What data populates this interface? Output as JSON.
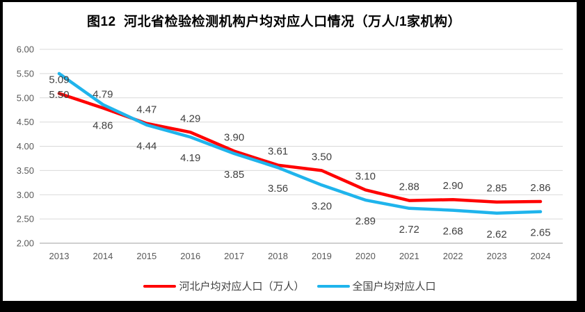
{
  "window": {
    "frame_color": "#000000",
    "background_color": "#ffffff"
  },
  "title": "图12  河北省检验检测机构户均对应人口情况（万人/1家机构）",
  "chart_data": {
    "type": "line",
    "title": "图12  河北省检验检测机构户均对应人口情况（万人/1家机构）",
    "categories": [
      "2013",
      "2014",
      "2015",
      "2016",
      "2017",
      "2018",
      "2019",
      "2020",
      "2021",
      "2022",
      "2023",
      "2024"
    ],
    "series": [
      {
        "name": "河北户均对应人口（万人）",
        "short_name": "hebei",
        "color": "#ff0000",
        "values": [
          5.09,
          4.79,
          4.47,
          4.29,
          3.9,
          3.61,
          3.5,
          3.1,
          2.88,
          2.9,
          2.85,
          2.86
        ],
        "label_position": "above"
      },
      {
        "name": "全国户均对应人口",
        "short_name": "national",
        "color": "#1fb4ec",
        "values": [
          5.5,
          4.86,
          4.44,
          4.19,
          3.85,
          3.56,
          3.2,
          2.89,
          2.72,
          2.68,
          2.62,
          2.65
        ],
        "label_position": "below"
      }
    ],
    "xlabel": "",
    "ylabel": "",
    "ylim": [
      2.0,
      6.0
    ],
    "y_tick_labels": [
      "6.00",
      "5.50",
      "5.00",
      "4.50",
      "4.00",
      "3.50",
      "3.00",
      "2.50",
      "2.00"
    ],
    "data_label_decimals": 2,
    "grid": true,
    "gridline_color": "#d9d9d9",
    "axis_line_color": "#bfbfbf",
    "axis_text_color": "#595959",
    "data_label_color": "#404040",
    "legend_position": "bottom",
    "markers": false
  }
}
